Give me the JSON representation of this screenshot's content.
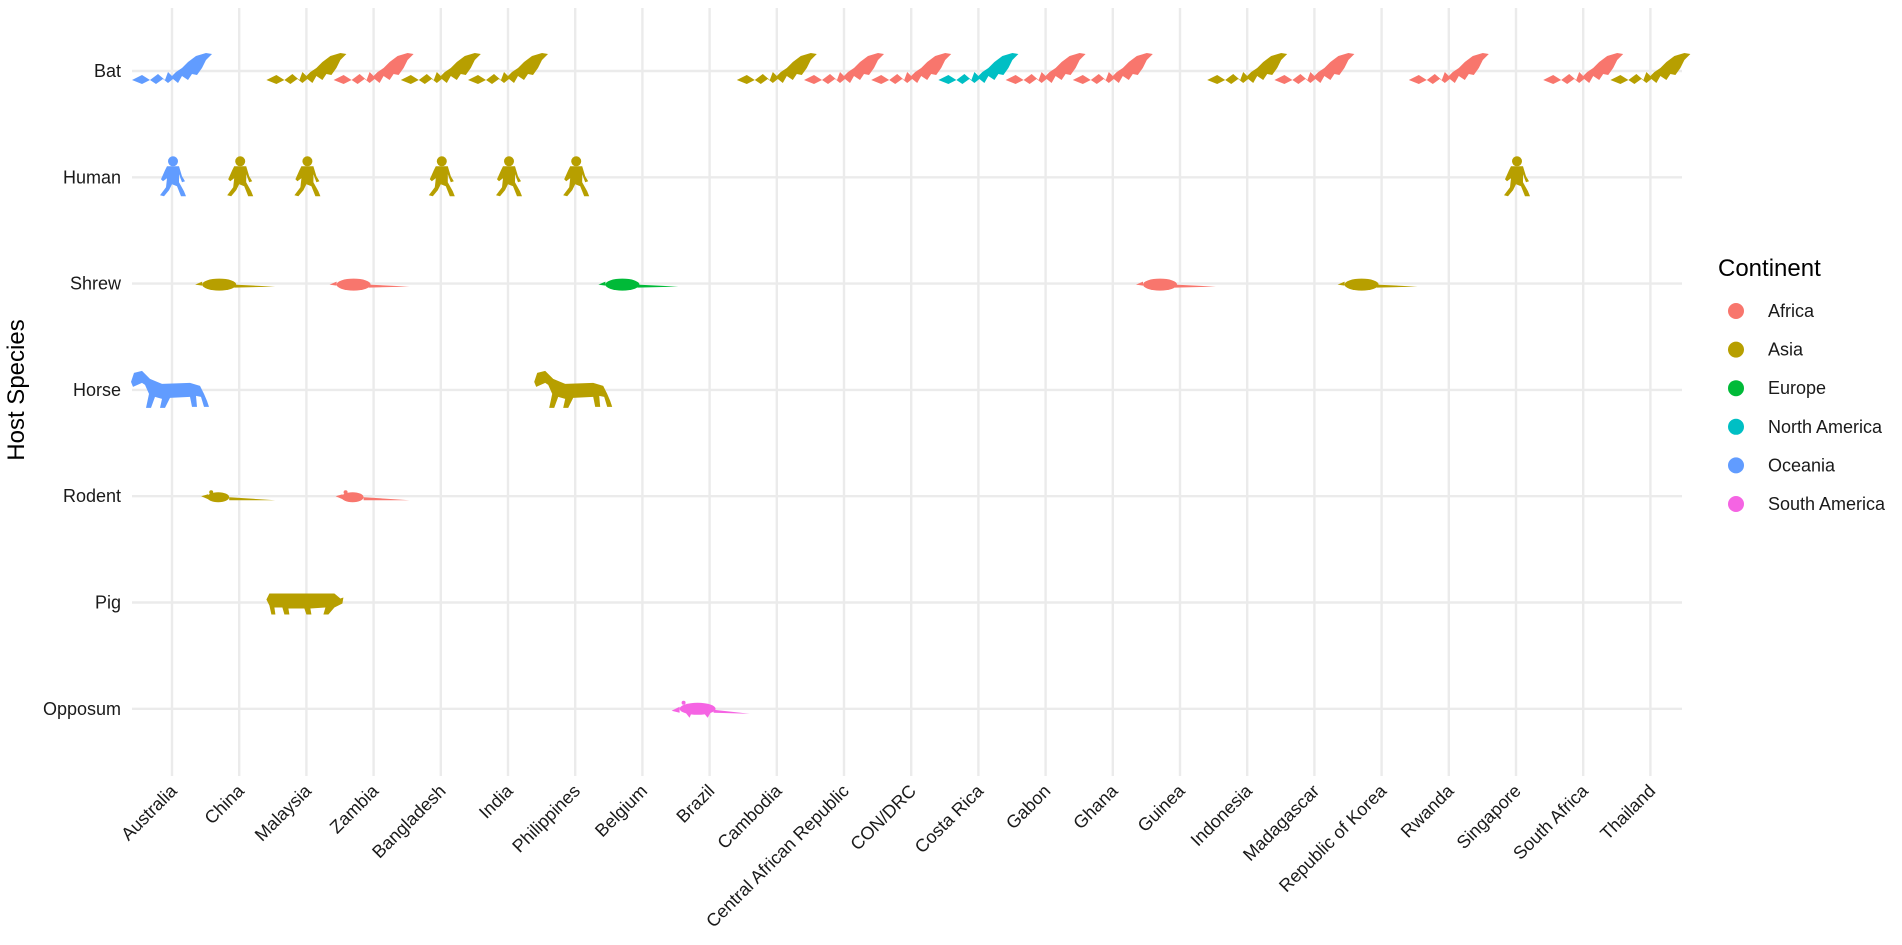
{
  "chart_data": {
    "type": "scatter",
    "title": "",
    "xlabel": "",
    "ylabel": "Host Species",
    "grid": true,
    "legend_position": "right",
    "countries": [
      "Australia",
      "China",
      "Malaysia",
      "Zambia",
      "Bangladesh",
      "India",
      "Philippines",
      "Belgium",
      "Brazil",
      "Cambodia",
      "Central African Republic",
      "CON/DRC",
      "Costa Rica",
      "Gabon",
      "Ghana",
      "Guinea",
      "Indonesia",
      "Madagascar",
      "Republic of Korea",
      "Rwanda",
      "Singapore",
      "South Africa",
      "Thailand"
    ],
    "hosts": [
      "Bat",
      "Human",
      "Shrew",
      "Horse",
      "Rodent",
      "Pig",
      "Opposum"
    ],
    "legend": {
      "title": "Continent",
      "items": [
        {
          "name": "Africa",
          "color": "#F8766D"
        },
        {
          "name": "Asia",
          "color": "#B79F00"
        },
        {
          "name": "Europe",
          "color": "#00BA38"
        },
        {
          "name": "North America",
          "color": "#00BFC4"
        },
        {
          "name": "Oceania",
          "color": "#619CFF"
        },
        {
          "name": "South America",
          "color": "#F564E3"
        }
      ]
    },
    "points": [
      {
        "x": "Australia",
        "y": "Bat",
        "continent": "Oceania"
      },
      {
        "x": "Malaysia",
        "y": "Bat",
        "continent": "Asia"
      },
      {
        "x": "Zambia",
        "y": "Bat",
        "continent": "Africa"
      },
      {
        "x": "Bangladesh",
        "y": "Bat",
        "continent": "Asia"
      },
      {
        "x": "India",
        "y": "Bat",
        "continent": "Asia"
      },
      {
        "x": "Cambodia",
        "y": "Bat",
        "continent": "Asia"
      },
      {
        "x": "Central African Republic",
        "y": "Bat",
        "continent": "Africa"
      },
      {
        "x": "CON/DRC",
        "y": "Bat",
        "continent": "Africa"
      },
      {
        "x": "Costa Rica",
        "y": "Bat",
        "continent": "North America"
      },
      {
        "x": "Gabon",
        "y": "Bat",
        "continent": "Africa"
      },
      {
        "x": "Ghana",
        "y": "Bat",
        "continent": "Africa"
      },
      {
        "x": "Indonesia",
        "y": "Bat",
        "continent": "Asia"
      },
      {
        "x": "Madagascar",
        "y": "Bat",
        "continent": "Africa"
      },
      {
        "x": "Rwanda",
        "y": "Bat",
        "continent": "Africa"
      },
      {
        "x": "South Africa",
        "y": "Bat",
        "continent": "Africa"
      },
      {
        "x": "Thailand",
        "y": "Bat",
        "continent": "Asia"
      },
      {
        "x": "Australia",
        "y": "Human",
        "continent": "Oceania"
      },
      {
        "x": "China",
        "y": "Human",
        "continent": "Asia"
      },
      {
        "x": "Malaysia",
        "y": "Human",
        "continent": "Asia"
      },
      {
        "x": "Bangladesh",
        "y": "Human",
        "continent": "Asia"
      },
      {
        "x": "India",
        "y": "Human",
        "continent": "Asia"
      },
      {
        "x": "Philippines",
        "y": "Human",
        "continent": "Asia"
      },
      {
        "x": "Singapore",
        "y": "Human",
        "continent": "Asia"
      },
      {
        "x": "China",
        "y": "Shrew",
        "continent": "Asia"
      },
      {
        "x": "Zambia",
        "y": "Shrew",
        "continent": "Africa"
      },
      {
        "x": "Belgium",
        "y": "Shrew",
        "continent": "Europe"
      },
      {
        "x": "Guinea",
        "y": "Shrew",
        "continent": "Africa"
      },
      {
        "x": "Republic of Korea",
        "y": "Shrew",
        "continent": "Asia"
      },
      {
        "x": "Australia",
        "y": "Horse",
        "continent": "Oceania"
      },
      {
        "x": "Philippines",
        "y": "Horse",
        "continent": "Asia"
      },
      {
        "x": "China",
        "y": "Rodent",
        "continent": "Asia"
      },
      {
        "x": "Zambia",
        "y": "Rodent",
        "continent": "Africa"
      },
      {
        "x": "Malaysia",
        "y": "Pig",
        "continent": "Asia"
      },
      {
        "x": "Brazil",
        "y": "Opposum",
        "continent": "South America"
      }
    ]
  }
}
